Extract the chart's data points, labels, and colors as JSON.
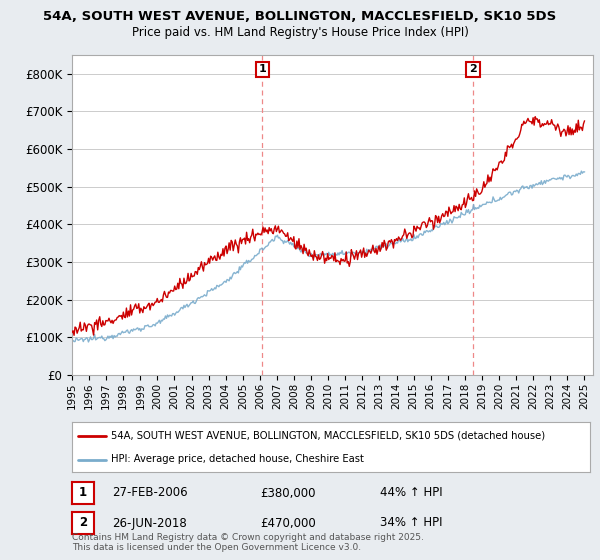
{
  "title_line1": "54A, SOUTH WEST AVENUE, BOLLINGTON, MACCLESFIELD, SK10 5DS",
  "title_line2": "Price paid vs. HM Land Registry's House Price Index (HPI)",
  "ylim": [
    0,
    850000
  ],
  "yticks": [
    0,
    100000,
    200000,
    300000,
    400000,
    500000,
    600000,
    700000,
    800000
  ],
  "ytick_labels": [
    "£0",
    "£100K",
    "£200K",
    "£300K",
    "£400K",
    "£500K",
    "£600K",
    "£700K",
    "£800K"
  ],
  "x_start_year": 1995,
  "x_end_year": 2025,
  "sale1_date": 2006.15,
  "sale1_label": "1",
  "sale2_date": 2018.48,
  "sale2_label": "2",
  "legend_entry1": "54A, SOUTH WEST AVENUE, BOLLINGTON, MACCLESFIELD, SK10 5DS (detached house)",
  "legend_entry2": "HPI: Average price, detached house, Cheshire East",
  "table_row1": [
    "1",
    "27-FEB-2006",
    "£380,000",
    "44% ↑ HPI"
  ],
  "table_row2": [
    "2",
    "26-JUN-2018",
    "£470,000",
    "34% ↑ HPI"
  ],
  "footer": "Contains HM Land Registry data © Crown copyright and database right 2025.\nThis data is licensed under the Open Government Licence v3.0.",
  "line_color_red": "#cc0000",
  "line_color_blue": "#7aaccc",
  "vline_color": "#ee8888",
  "background_color": "#e8ecf0",
  "plot_bg_color": "#ffffff",
  "grid_color": "#cccccc",
  "border_color": "#aaaaaa"
}
